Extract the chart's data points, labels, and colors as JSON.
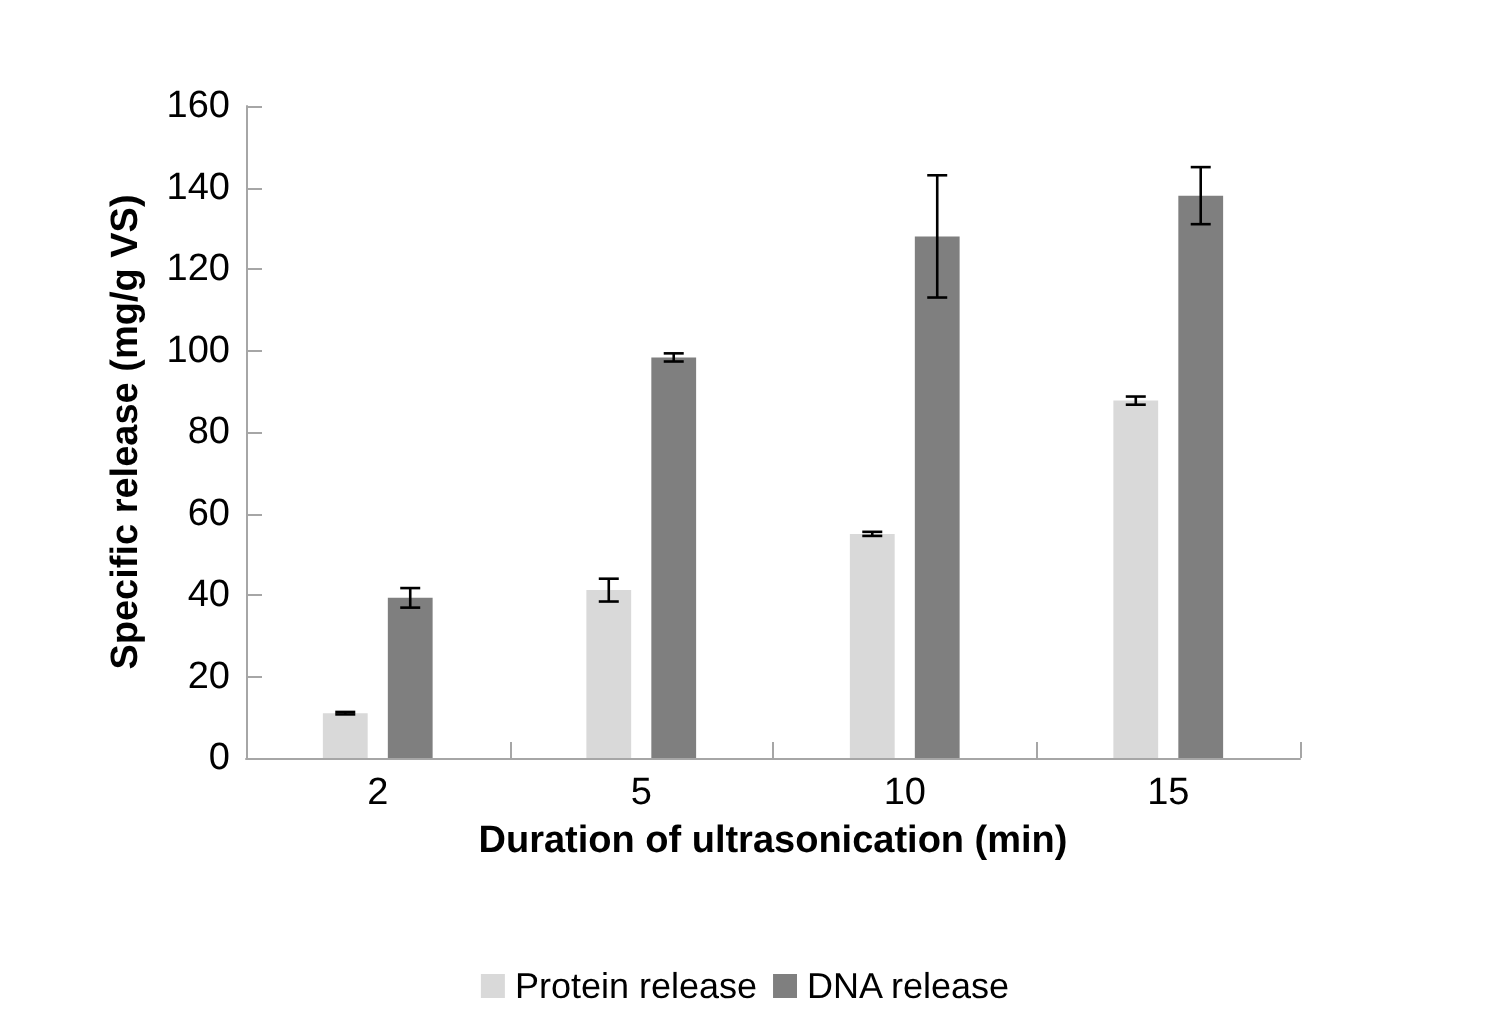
{
  "chart_data": {
    "type": "bar",
    "xlabel": "Duration of ultrasonication (min)",
    "ylabel": "Specific release (mg/g VS)",
    "categories": [
      "2",
      "5",
      "10",
      "15"
    ],
    "series": [
      {
        "name": "Protein release",
        "color": "#d9d9d9",
        "values": [
          11,
          41.2,
          55,
          87.7
        ],
        "errors": [
          0.3,
          2.8,
          0.5,
          1
        ]
      },
      {
        "name": "DNA release",
        "color": "#7f7f7f",
        "values": [
          39.3,
          98.3,
          128,
          138
        ],
        "errors": [
          2.4,
          1,
          15,
          7
        ]
      }
    ],
    "ylim": [
      0,
      160
    ],
    "yticks": [
      0,
      20,
      40,
      60,
      80,
      100,
      120,
      140,
      160
    ],
    "grid": false,
    "legend": "bottom"
  }
}
